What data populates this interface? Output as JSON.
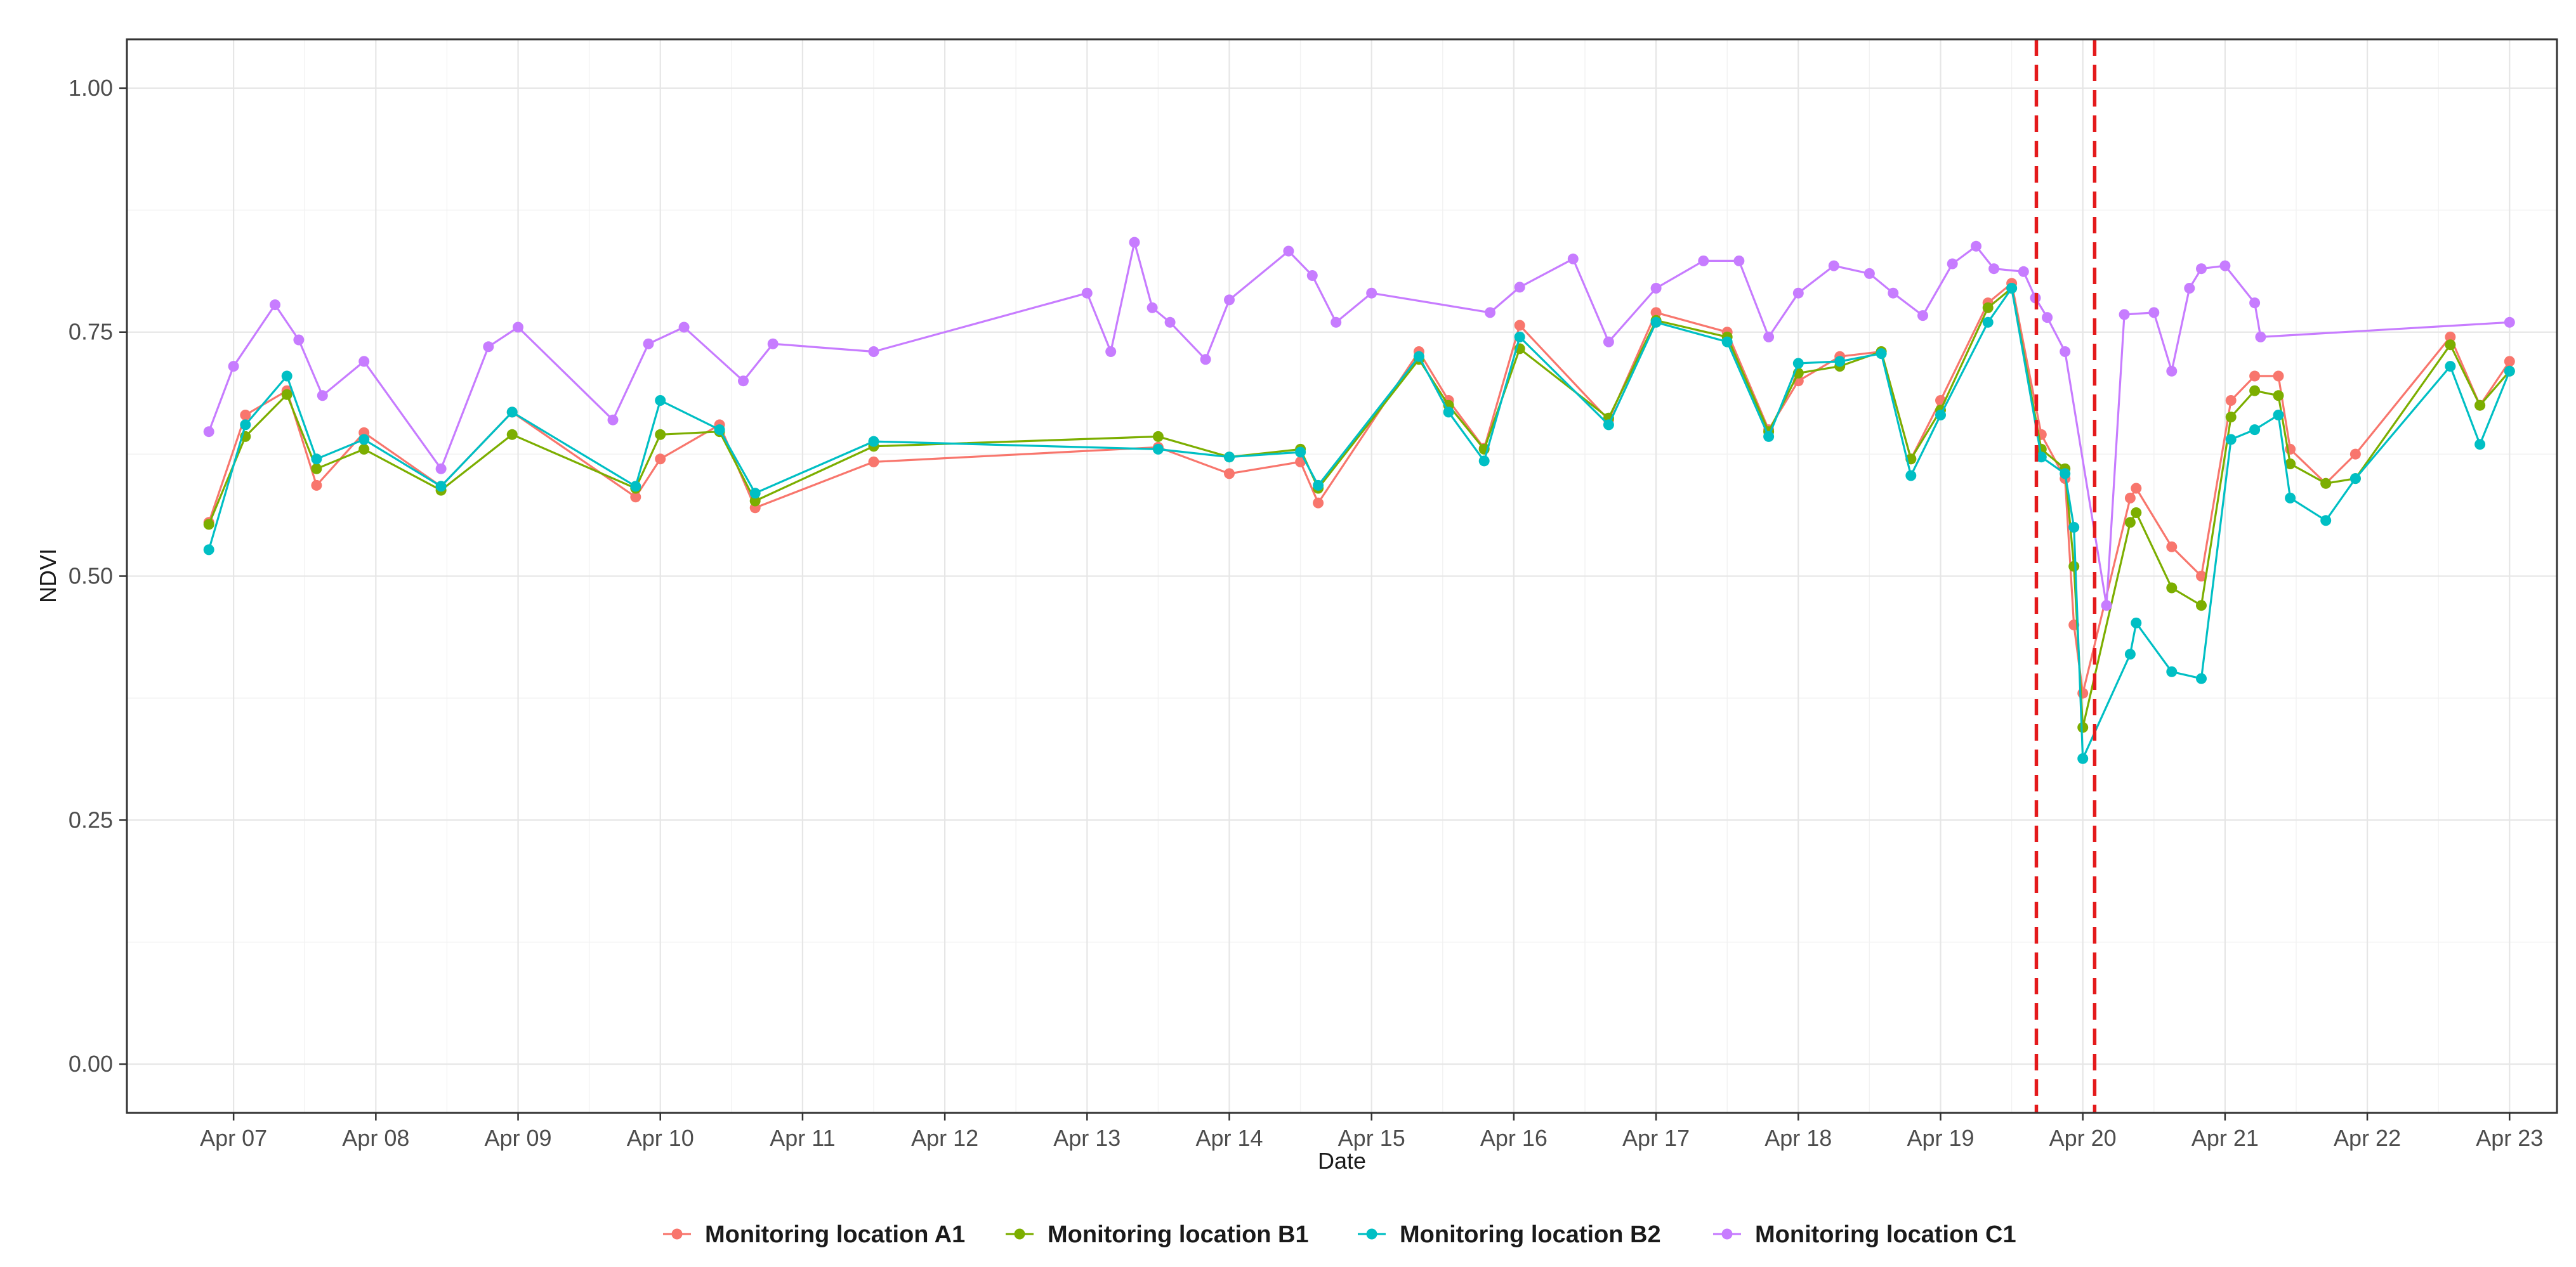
{
  "chart_data": {
    "type": "line",
    "xlabel": "Date",
    "ylabel": "NDVI",
    "xlim": [
      "2022-04-06T06:00",
      "2022-04-23T08:00"
    ],
    "ylim": [
      -0.05,
      1.05
    ],
    "x_ticks": [
      "Apr 07",
      "Apr 08",
      "Apr 09",
      "Apr 10",
      "Apr 11",
      "Apr 12",
      "Apr 13",
      "Apr 14",
      "Apr 15",
      "Apr 16",
      "Apr 17",
      "Apr 18",
      "Apr 19",
      "Apr 20",
      "Apr 21",
      "Apr 22",
      "Apr 23"
    ],
    "x_tick_dates": [
      "2022-04-07",
      "2022-04-08",
      "2022-04-09",
      "2022-04-10",
      "2022-04-11",
      "2022-04-12",
      "2022-04-13",
      "2022-04-14",
      "2022-04-15",
      "2022-04-16",
      "2022-04-17",
      "2022-04-18",
      "2022-04-19",
      "2022-04-20",
      "2022-04-21",
      "2022-04-22",
      "2022-04-23"
    ],
    "y_ticks": [
      "0.00",
      "0.25",
      "0.50",
      "0.75",
      "1.00"
    ],
    "y_tick_values": [
      0,
      0.25,
      0.5,
      0.75,
      1.0
    ],
    "grid": true,
    "legend_position": "bottom",
    "reference_lines": [
      {
        "orientation": "vertical",
        "x": "2022-04-19T16:10",
        "color": "#e41a1c",
        "style": "dashed"
      },
      {
        "orientation": "vertical",
        "x": "2022-04-20T02:00",
        "color": "#e41a1c",
        "style": "dashed"
      }
    ],
    "series": [
      {
        "name": "Monitoring location A1",
        "color": "#F8766D",
        "points": [
          [
            "2022-04-06T19:50",
            0.555
          ],
          [
            "2022-04-07T02:00",
            0.665
          ],
          [
            "2022-04-07T09:00",
            0.69
          ],
          [
            "2022-04-07T14:00",
            0.593
          ],
          [
            "2022-04-07T22:00",
            0.647
          ],
          [
            "2022-04-08T11:00",
            0.592
          ],
          [
            "2022-04-08T23:00",
            0.668
          ],
          [
            "2022-04-09T19:50",
            0.581
          ],
          [
            "2022-04-10T00:00",
            0.62
          ],
          [
            "2022-04-10T10:00",
            0.655
          ],
          [
            "2022-04-10T16:00",
            0.57
          ],
          [
            "2022-04-11T12:00",
            0.617
          ],
          [
            "2022-04-13T12:00",
            0.632
          ],
          [
            "2022-04-14T00:00",
            0.605
          ],
          [
            "2022-04-14T12:00",
            0.617
          ],
          [
            "2022-04-14T15:00",
            0.575
          ],
          [
            "2022-04-15T08:00",
            0.73
          ],
          [
            "2022-04-15T13:00",
            0.68
          ],
          [
            "2022-04-15T19:00",
            0.631
          ],
          [
            "2022-04-16T01:00",
            0.757
          ],
          [
            "2022-04-16T16:00",
            0.66
          ],
          [
            "2022-04-17T00:00",
            0.77
          ],
          [
            "2022-04-17T12:00",
            0.75
          ],
          [
            "2022-04-17T19:00",
            0.65
          ],
          [
            "2022-04-18T00:00",
            0.7
          ],
          [
            "2022-04-18T07:00",
            0.725
          ],
          [
            "2022-04-18T14:00",
            0.73
          ],
          [
            "2022-04-18T19:00",
            0.62
          ],
          [
            "2022-04-19T00:00",
            0.68
          ],
          [
            "2022-04-19T08:00",
            0.78
          ],
          [
            "2022-04-19T12:00",
            0.8
          ],
          [
            "2022-04-19T17:00",
            0.645
          ],
          [
            "2022-04-19T21:00",
            0.6
          ],
          [
            "2022-04-19T22:30",
            0.45
          ],
          [
            "2022-04-20T00:00",
            0.38
          ],
          [
            "2022-04-20T08:00",
            0.58
          ],
          [
            "2022-04-20T09:00",
            0.59
          ],
          [
            "2022-04-20T15:00",
            0.53
          ],
          [
            "2022-04-20T20:00",
            0.5
          ],
          [
            "2022-04-21T01:00",
            0.68
          ],
          [
            "2022-04-21T05:00",
            0.705
          ],
          [
            "2022-04-21T09:00",
            0.705
          ],
          [
            "2022-04-21T11:00",
            0.63
          ],
          [
            "2022-04-21T17:00",
            0.595
          ],
          [
            "2022-04-21T22:00",
            0.625
          ],
          [
            "2022-04-22T14:00",
            0.745
          ],
          [
            "2022-04-22T19:00",
            0.675
          ],
          [
            "2022-04-23T00:00",
            0.72
          ]
        ]
      },
      {
        "name": "Monitoring location B1",
        "color": "#7CAE00",
        "points": [
          [
            "2022-04-06T19:50",
            0.553
          ],
          [
            "2022-04-07T02:00",
            0.643
          ],
          [
            "2022-04-07T09:00",
            0.686
          ],
          [
            "2022-04-07T14:00",
            0.61
          ],
          [
            "2022-04-07T22:00",
            0.63
          ],
          [
            "2022-04-08T11:00",
            0.588
          ],
          [
            "2022-04-08T23:00",
            0.645
          ],
          [
            "2022-04-09T19:50",
            0.59
          ],
          [
            "2022-04-10T00:00",
            0.645
          ],
          [
            "2022-04-10T10:00",
            0.648
          ],
          [
            "2022-04-10T16:00",
            0.577
          ],
          [
            "2022-04-11T12:00",
            0.633
          ],
          [
            "2022-04-13T12:00",
            0.643
          ],
          [
            "2022-04-14T00:00",
            0.622
          ],
          [
            "2022-04-14T12:00",
            0.63
          ],
          [
            "2022-04-14T15:00",
            0.59
          ],
          [
            "2022-04-15T08:00",
            0.722
          ],
          [
            "2022-04-15T13:00",
            0.675
          ],
          [
            "2022-04-15T19:00",
            0.63
          ],
          [
            "2022-04-16T01:00",
            0.733
          ],
          [
            "2022-04-16T16:00",
            0.662
          ],
          [
            "2022-04-17T00:00",
            0.762
          ],
          [
            "2022-04-17T12:00",
            0.745
          ],
          [
            "2022-04-17T19:00",
            0.648
          ],
          [
            "2022-04-18T00:00",
            0.708
          ],
          [
            "2022-04-18T07:00",
            0.715
          ],
          [
            "2022-04-18T14:00",
            0.73
          ],
          [
            "2022-04-18T19:00",
            0.62
          ],
          [
            "2022-04-19T00:00",
            0.67
          ],
          [
            "2022-04-19T08:00",
            0.775
          ],
          [
            "2022-04-19T12:00",
            0.795
          ],
          [
            "2022-04-19T17:00",
            0.63
          ],
          [
            "2022-04-19T21:00",
            0.61
          ],
          [
            "2022-04-19T22:30",
            0.51
          ],
          [
            "2022-04-20T00:00",
            0.345
          ],
          [
            "2022-04-20T08:00",
            0.555
          ],
          [
            "2022-04-20T09:00",
            0.565
          ],
          [
            "2022-04-20T15:00",
            0.488
          ],
          [
            "2022-04-20T20:00",
            0.47
          ],
          [
            "2022-04-21T01:00",
            0.663
          ],
          [
            "2022-04-21T05:00",
            0.69
          ],
          [
            "2022-04-21T09:00",
            0.685
          ],
          [
            "2022-04-21T11:00",
            0.615
          ],
          [
            "2022-04-21T17:00",
            0.595
          ],
          [
            "2022-04-21T22:00",
            0.6
          ],
          [
            "2022-04-22T14:00",
            0.737
          ],
          [
            "2022-04-22T19:00",
            0.675
          ],
          [
            "2022-04-23T00:00",
            0.71
          ]
        ]
      },
      {
        "name": "Monitoring location B2",
        "color": "#00BFC4",
        "points": [
          [
            "2022-04-06T19:50",
            0.527
          ],
          [
            "2022-04-07T02:00",
            0.655
          ],
          [
            "2022-04-07T09:00",
            0.705
          ],
          [
            "2022-04-07T14:00",
            0.62
          ],
          [
            "2022-04-07T22:00",
            0.64
          ],
          [
            "2022-04-08T11:00",
            0.592
          ],
          [
            "2022-04-08T23:00",
            0.668
          ],
          [
            "2022-04-09T19:50",
            0.592
          ],
          [
            "2022-04-10T00:00",
            0.68
          ],
          [
            "2022-04-10T10:00",
            0.65
          ],
          [
            "2022-04-10T16:00",
            0.585
          ],
          [
            "2022-04-11T12:00",
            0.638
          ],
          [
            "2022-04-13T12:00",
            0.63
          ],
          [
            "2022-04-14T00:00",
            0.622
          ],
          [
            "2022-04-14T12:00",
            0.627
          ],
          [
            "2022-04-14T15:00",
            0.593
          ],
          [
            "2022-04-15T08:00",
            0.725
          ],
          [
            "2022-04-15T13:00",
            0.668
          ],
          [
            "2022-04-15T19:00",
            0.618
          ],
          [
            "2022-04-16T01:00",
            0.745
          ],
          [
            "2022-04-16T16:00",
            0.655
          ],
          [
            "2022-04-17T00:00",
            0.76
          ],
          [
            "2022-04-17T12:00",
            0.74
          ],
          [
            "2022-04-17T19:00",
            0.643
          ],
          [
            "2022-04-18T00:00",
            0.718
          ],
          [
            "2022-04-18T07:00",
            0.72
          ],
          [
            "2022-04-18T14:00",
            0.728
          ],
          [
            "2022-04-18T19:00",
            0.603
          ],
          [
            "2022-04-19T00:00",
            0.665
          ],
          [
            "2022-04-19T08:00",
            0.76
          ],
          [
            "2022-04-19T12:00",
            0.795
          ],
          [
            "2022-04-19T17:00",
            0.622
          ],
          [
            "2022-04-19T21:00",
            0.605
          ],
          [
            "2022-04-19T22:30",
            0.55
          ],
          [
            "2022-04-20T00:00",
            0.313
          ],
          [
            "2022-04-20T08:00",
            0.42
          ],
          [
            "2022-04-20T09:00",
            0.452
          ],
          [
            "2022-04-20T15:00",
            0.402
          ],
          [
            "2022-04-20T20:00",
            0.395
          ],
          [
            "2022-04-21T01:00",
            0.64
          ],
          [
            "2022-04-21T05:00",
            0.65
          ],
          [
            "2022-04-21T09:00",
            0.665
          ],
          [
            "2022-04-21T11:00",
            0.58
          ],
          [
            "2022-04-21T17:00",
            0.557
          ],
          [
            "2022-04-21T22:00",
            0.6
          ],
          [
            "2022-04-22T14:00",
            0.715
          ],
          [
            "2022-04-22T19:00",
            0.635
          ],
          [
            "2022-04-23T00:00",
            0.71
          ]
        ]
      },
      {
        "name": "Monitoring location C1",
        "color": "#C77CFF",
        "points": [
          [
            "2022-04-06T19:50",
            0.648
          ],
          [
            "2022-04-07T00:00",
            0.715
          ],
          [
            "2022-04-07T07:00",
            0.778
          ],
          [
            "2022-04-07T11:00",
            0.742
          ],
          [
            "2022-04-07T15:00",
            0.685
          ],
          [
            "2022-04-07T22:00",
            0.72
          ],
          [
            "2022-04-08T11:00",
            0.61
          ],
          [
            "2022-04-08T19:00",
            0.735
          ],
          [
            "2022-04-09T00:00",
            0.755
          ],
          [
            "2022-04-09T16:00",
            0.66
          ],
          [
            "2022-04-09T22:00",
            0.738
          ],
          [
            "2022-04-10T04:00",
            0.755
          ],
          [
            "2022-04-10T14:00",
            0.7
          ],
          [
            "2022-04-10T19:00",
            0.738
          ],
          [
            "2022-04-11T12:00",
            0.73
          ],
          [
            "2022-04-13T00:00",
            0.79
          ],
          [
            "2022-04-13T04:00",
            0.73
          ],
          [
            "2022-04-13T08:00",
            0.842
          ],
          [
            "2022-04-13T11:00",
            0.775
          ],
          [
            "2022-04-13T14:00",
            0.76
          ],
          [
            "2022-04-13T20:00",
            0.722
          ],
          [
            "2022-04-14T00:00",
            0.783
          ],
          [
            "2022-04-14T10:00",
            0.833
          ],
          [
            "2022-04-14T14:00",
            0.808
          ],
          [
            "2022-04-14T18:00",
            0.76
          ],
          [
            "2022-04-15T00:00",
            0.79
          ],
          [
            "2022-04-15T20:00",
            0.77
          ],
          [
            "2022-04-16T01:00",
            0.796
          ],
          [
            "2022-04-16T10:00",
            0.825
          ],
          [
            "2022-04-16T16:00",
            0.74
          ],
          [
            "2022-04-17T00:00",
            0.795
          ],
          [
            "2022-04-17T08:00",
            0.823
          ],
          [
            "2022-04-17T14:00",
            0.823
          ],
          [
            "2022-04-17T19:00",
            0.745
          ],
          [
            "2022-04-18T00:00",
            0.79
          ],
          [
            "2022-04-18T06:00",
            0.818
          ],
          [
            "2022-04-18T12:00",
            0.81
          ],
          [
            "2022-04-18T16:00",
            0.79
          ],
          [
            "2022-04-18T21:00",
            0.767
          ],
          [
            "2022-04-19T02:00",
            0.82
          ],
          [
            "2022-04-19T06:00",
            0.838
          ],
          [
            "2022-04-19T09:00",
            0.815
          ],
          [
            "2022-04-19T14:00",
            0.812
          ],
          [
            "2022-04-19T16:00",
            0.785
          ],
          [
            "2022-04-19T18:00",
            0.765
          ],
          [
            "2022-04-19T21:00",
            0.73
          ],
          [
            "2022-04-20T04:00",
            0.47
          ],
          [
            "2022-04-20T07:00",
            0.768
          ],
          [
            "2022-04-20T12:00",
            0.77
          ],
          [
            "2022-04-20T15:00",
            0.71
          ],
          [
            "2022-04-20T18:00",
            0.795
          ],
          [
            "2022-04-20T20:00",
            0.815
          ],
          [
            "2022-04-21T00:00",
            0.818
          ],
          [
            "2022-04-21T05:00",
            0.78
          ],
          [
            "2022-04-21T06:00",
            0.745
          ],
          [
            "2022-04-23T00:00",
            0.76
          ]
        ]
      }
    ]
  }
}
